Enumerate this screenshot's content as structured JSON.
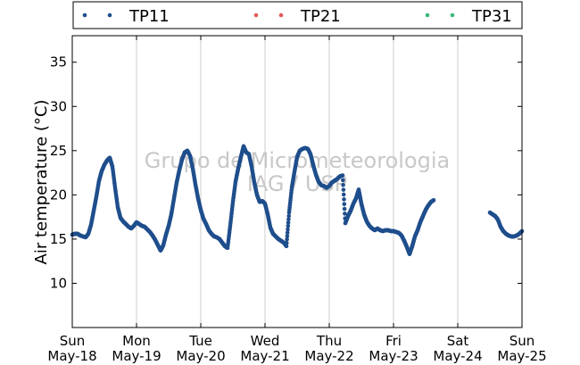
{
  "chart_data": {
    "type": "scatter",
    "ylabel": "Air temperature (°C)",
    "ylim": [
      5,
      38
    ],
    "yticks": [
      10,
      15,
      20,
      25,
      30,
      35
    ],
    "xlim": [
      "2014-05-18 00:00",
      "2014-05-25 00:00"
    ],
    "xticks": [
      {
        "day": "Sun",
        "date": "May-18"
      },
      {
        "day": "Mon",
        "date": "May-19"
      },
      {
        "day": "Tue",
        "date": "May-20"
      },
      {
        "day": "Wed",
        "date": "May-21"
      },
      {
        "day": "Thu",
        "date": "May-22"
      },
      {
        "day": "Fri",
        "date": "May-23"
      },
      {
        "day": "Sat",
        "date": "May-24"
      },
      {
        "day": "Sun",
        "date": "May-25"
      }
    ],
    "grid": "vertical",
    "legend_position": "top",
    "watermark": [
      "Grupo de Micrometeorologia",
      "IAG / USP"
    ],
    "series": [
      {
        "name": "TP11",
        "color": "#1f4e8c",
        "x": [
          "2014-05-18 00:00",
          "2014-05-18 01:00",
          "2014-05-18 02:00",
          "2014-05-18 03:00",
          "2014-05-18 04:00",
          "2014-05-18 05:00",
          "2014-05-18 06:00",
          "2014-05-18 07:00",
          "2014-05-18 08:00",
          "2014-05-18 09:00",
          "2014-05-18 10:00",
          "2014-05-18 11:00",
          "2014-05-18 12:00",
          "2014-05-18 13:00",
          "2014-05-18 14:00",
          "2014-05-18 15:00",
          "2014-05-18 16:00",
          "2014-05-18 17:00",
          "2014-05-18 18:00",
          "2014-05-18 19:00",
          "2014-05-18 20:00",
          "2014-05-18 21:00",
          "2014-05-18 22:00",
          "2014-05-18 23:00",
          "2014-05-19 00:00",
          "2014-05-19 01:00",
          "2014-05-19 02:00",
          "2014-05-19 03:00",
          "2014-05-19 04:00",
          "2014-05-19 05:00",
          "2014-05-19 06:00",
          "2014-05-19 07:00",
          "2014-05-19 08:00",
          "2014-05-19 09:00",
          "2014-05-19 10:00",
          "2014-05-19 11:00",
          "2014-05-19 12:00",
          "2014-05-19 13:00",
          "2014-05-19 14:00",
          "2014-05-19 15:00",
          "2014-05-19 16:00",
          "2014-05-19 17:00",
          "2014-05-19 18:00",
          "2014-05-19 19:00",
          "2014-05-19 20:00",
          "2014-05-19 21:00",
          "2014-05-19 22:00",
          "2014-05-19 23:00",
          "2014-05-20 00:00",
          "2014-05-20 01:00",
          "2014-05-20 02:00",
          "2014-05-20 03:00",
          "2014-05-20 04:00",
          "2014-05-20 05:00",
          "2014-05-20 06:00",
          "2014-05-20 07:00",
          "2014-05-20 08:00",
          "2014-05-20 09:00",
          "2014-05-20 10:00",
          "2014-05-20 11:00",
          "2014-05-20 12:00",
          "2014-05-20 13:00",
          "2014-05-20 14:00",
          "2014-05-20 15:00",
          "2014-05-20 16:00",
          "2014-05-20 17:00",
          "2014-05-20 18:00",
          "2014-05-20 19:00",
          "2014-05-20 20:00",
          "2014-05-20 21:00",
          "2014-05-20 22:00",
          "2014-05-20 23:00",
          "2014-05-21 00:00",
          "2014-05-21 01:00",
          "2014-05-21 02:00",
          "2014-05-21 03:00",
          "2014-05-21 04:00",
          "2014-05-21 05:00",
          "2014-05-21 06:00",
          "2014-05-21 07:00",
          "2014-05-21 08:00",
          "2014-05-21 09:00",
          "2014-05-21 10:00",
          "2014-05-21 11:00",
          "2014-05-21 12:00",
          "2014-05-21 13:00",
          "2014-05-21 14:00",
          "2014-05-21 15:00",
          "2014-05-21 16:00",
          "2014-05-21 17:00",
          "2014-05-21 18:00",
          "2014-05-21 19:00",
          "2014-05-21 20:00",
          "2014-05-21 21:00",
          "2014-05-21 22:00",
          "2014-05-21 23:00",
          "2014-05-22 00:00",
          "2014-05-22 01:00",
          "2014-05-22 02:00",
          "2014-05-22 03:00",
          "2014-05-22 04:00",
          "2014-05-22 05:00",
          "2014-05-22 06:00",
          "2014-05-22 07:00",
          "2014-05-22 08:00",
          "2014-05-22 09:00",
          "2014-05-22 10:00",
          "2014-05-22 11:00",
          "2014-05-22 12:00",
          "2014-05-22 13:00",
          "2014-05-22 14:00",
          "2014-05-22 15:00",
          "2014-05-22 16:00",
          "2014-05-22 17:00",
          "2014-05-22 18:00",
          "2014-05-22 19:00",
          "2014-05-22 20:00",
          "2014-05-22 21:00",
          "2014-05-22 22:00",
          "2014-05-22 23:00",
          "2014-05-23 00:00",
          "2014-05-23 01:00",
          "2014-05-23 02:00",
          "2014-05-23 03:00",
          "2014-05-23 04:00",
          "2014-05-23 05:00",
          "2014-05-23 06:00",
          "2014-05-23 07:00",
          "2014-05-23 08:00",
          "2014-05-23 09:00",
          "2014-05-23 10:00",
          "2014-05-23 11:00",
          "2014-05-23 12:00",
          "2014-05-23 13:00",
          "2014-05-23 14:00",
          "2014-05-23 15:00",
          "2014-05-24 12:00",
          "2014-05-24 13:00",
          "2014-05-24 14:00",
          "2014-05-24 15:00",
          "2014-05-24 16:00",
          "2014-05-24 17:00",
          "2014-05-24 18:00",
          "2014-05-24 19:00",
          "2014-05-24 20:00",
          "2014-05-24 21:00",
          "2014-05-24 22:00",
          "2014-05-24 23:00",
          "2014-05-25 00:00"
        ],
        "y": [
          15.5,
          15.6,
          15.6,
          15.4,
          15.3,
          15.2,
          15.6,
          16.6,
          18.2,
          19.8,
          21.6,
          22.7,
          23.4,
          23.9,
          24.2,
          23.2,
          20.8,
          18.6,
          17.4,
          17.0,
          16.7,
          16.4,
          16.2,
          16.5,
          16.9,
          16.7,
          16.5,
          16.4,
          16.1,
          15.8,
          15.4,
          14.9,
          14.3,
          13.7,
          14.3,
          15.5,
          16.5,
          17.8,
          19.6,
          21.4,
          22.8,
          24.0,
          24.8,
          25.0,
          24.4,
          23.0,
          21.2,
          19.6,
          18.3,
          17.3,
          16.7,
          16.0,
          15.6,
          15.3,
          15.2,
          15.0,
          14.6,
          14.2,
          14.0,
          16.5,
          19.2,
          21.5,
          23.0,
          24.3,
          25.5,
          24.8,
          24.6,
          23.2,
          21.4,
          20.0,
          19.2,
          19.3,
          19.0,
          17.8,
          16.3,
          15.6,
          15.3,
          15.0,
          14.8,
          14.6,
          14.2,
          18.0,
          20.8,
          22.6,
          24.3,
          25.0,
          25.2,
          25.3,
          25.2,
          24.6,
          23.4,
          22.3,
          21.5,
          21.1,
          21.0,
          20.8,
          21.0,
          21.4,
          21.6,
          21.8,
          22.1,
          22.2,
          16.8,
          17.6,
          18.2,
          19.0,
          19.6,
          20.6,
          19.0,
          17.8,
          17.0,
          16.5,
          16.2,
          16.0,
          16.2,
          16.0,
          15.9,
          16.0,
          16.0,
          15.9,
          15.9,
          15.8,
          15.7,
          15.4,
          14.8,
          14.1,
          13.3,
          14.2,
          15.3,
          16.0,
          16.9,
          17.6,
          18.3,
          18.8,
          19.2,
          19.4,
          18.0,
          17.8,
          17.6,
          17.2,
          16.4,
          15.9,
          15.6,
          15.4,
          15.3,
          15.3,
          15.4,
          15.6,
          15.9
        ]
      },
      {
        "name": "TP21",
        "color": "#e05a5a",
        "x": [],
        "y": []
      },
      {
        "name": "TP31",
        "color": "#3cb878",
        "x": [],
        "y": []
      }
    ]
  }
}
